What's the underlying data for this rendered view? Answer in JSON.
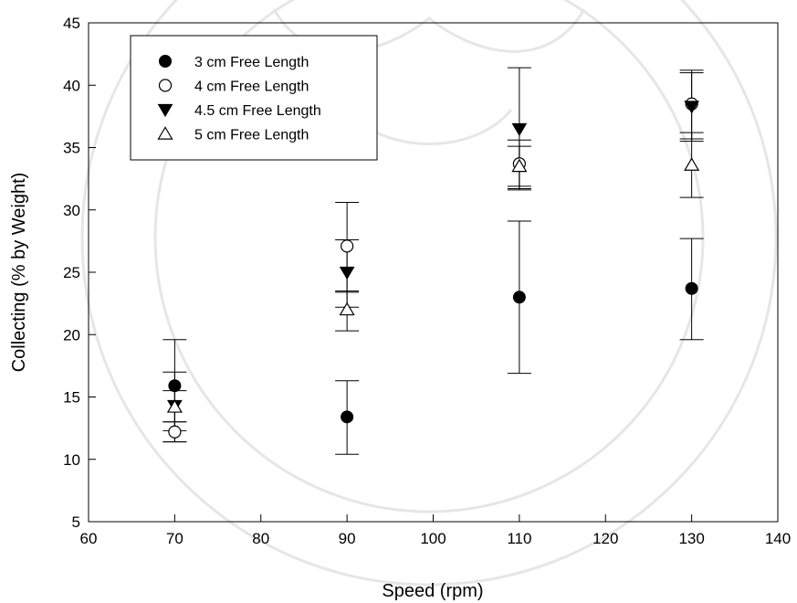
{
  "chart_data": {
    "type": "scatter",
    "xlabel": "Speed (rpm)",
    "ylabel": "Collecting (% by Weight)",
    "xlim": [
      60,
      140
    ],
    "ylim": [
      5,
      45
    ],
    "xticks": [
      60,
      70,
      80,
      90,
      100,
      110,
      120,
      130,
      140
    ],
    "yticks": [
      5,
      10,
      15,
      20,
      25,
      30,
      35,
      40,
      45
    ],
    "grid": false,
    "legend_placement": "top-left",
    "series": [
      {
        "name": "3 cm Free Length",
        "marker": "filled-circle",
        "points": [
          {
            "x": 70,
            "y": 15.9,
            "err_low": 12.3,
            "err_high": 19.6
          },
          {
            "x": 90,
            "y": 13.4,
            "err_low": 10.4,
            "err_high": 16.3
          },
          {
            "x": 110,
            "y": 23.0,
            "err_low": 16.9,
            "err_high": 29.1
          },
          {
            "x": 130,
            "y": 23.7,
            "err_low": 19.6,
            "err_high": 27.7
          }
        ]
      },
      {
        "name": "4 cm Free Length",
        "marker": "open-circle",
        "points": [
          {
            "x": 70,
            "y": 12.2,
            "err_low": 11.4,
            "err_high": 13.0
          },
          {
            "x": 90,
            "y": 27.1,
            "err_low": 23.4,
            "err_high": 30.6
          },
          {
            "x": 110,
            "y": 33.7,
            "err_low": 31.9,
            "err_high": 35.6
          },
          {
            "x": 130,
            "y": 38.5,
            "err_low": 35.7,
            "err_high": 41.2
          }
        ]
      },
      {
        "name": "4.5 cm Free Length",
        "marker": "filled-triangle-down",
        "points": [
          {
            "x": 70,
            "y": 14.3,
            "err_low": 11.4,
            "err_high": 17.0
          },
          {
            "x": 90,
            "y": 25.0,
            "err_low": 22.2,
            "err_high": 27.6
          },
          {
            "x": 110,
            "y": 36.5,
            "err_low": 31.6,
            "err_high": 41.4
          },
          {
            "x": 130,
            "y": 38.3,
            "err_low": 35.5,
            "err_high": 41.0
          }
        ]
      },
      {
        "name": "5 cm Free Length",
        "marker": "open-triangle-up",
        "points": [
          {
            "x": 70,
            "y": 14.2,
            "err_low": 13.0,
            "err_high": 15.5
          },
          {
            "x": 90,
            "y": 22.0,
            "err_low": 20.3,
            "err_high": 23.5
          },
          {
            "x": 110,
            "y": 33.5,
            "err_low": 31.7,
            "err_high": 35.1
          },
          {
            "x": 130,
            "y": 33.6,
            "err_low": 31.0,
            "err_high": 36.2
          }
        ]
      }
    ]
  }
}
